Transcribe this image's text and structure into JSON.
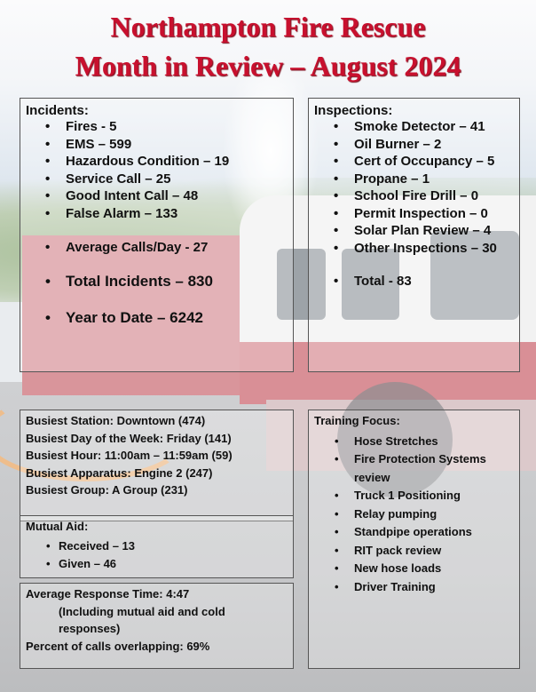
{
  "title": {
    "line1": "Northampton Fire Rescue",
    "line2": "Month in Review – August 2024"
  },
  "colors": {
    "title": "#c8102e"
  },
  "incidents": {
    "heading": "Incidents:",
    "items": [
      "Fires - 5",
      "EMS – 599",
      "Hazardous Condition – 19",
      "Service Call – 25",
      "Good Intent Call – 48",
      "False Alarm – 133"
    ],
    "average": "Average Calls/Day - 27",
    "total": "Total Incidents – 830",
    "ytd": "Year to Date – 6242"
  },
  "inspections": {
    "heading": "Inspections:",
    "items": [
      "Smoke Detector – 41",
      "Oil Burner – 2",
      "Cert of Occupancy – 5",
      "Propane – 1",
      "School Fire Drill – 0",
      "Permit Inspection – 0",
      "Solar Plan Review – 4",
      "Other Inspections – 30"
    ],
    "total": "Total - 83"
  },
  "busiest": [
    "Busiest Station:  Downtown (474)",
    "Busiest Day of the Week:  Friday (141)",
    "Busiest Hour:  11:00am – 11:59am (59)",
    "Busiest Apparatus:  Engine 2 (247)",
    "Busiest Group:  A Group (231)"
  ],
  "mutual_aid": {
    "heading": "Mutual Aid:",
    "items": [
      "Received – 13",
      "Given – 46"
    ]
  },
  "response": {
    "time": "Average Response Time:  4:47",
    "note": "(Including mutual aid and cold responses)",
    "overlap": "Percent of calls overlapping: 69%"
  },
  "training": {
    "heading": "Training Focus:",
    "items": [
      "Hose Stretches",
      "Fire Protection Systems review",
      "Truck 1 Positioning",
      "Relay pumping",
      "Standpipe operations",
      "RIT pack review",
      "New hose loads",
      "Driver Training"
    ]
  }
}
